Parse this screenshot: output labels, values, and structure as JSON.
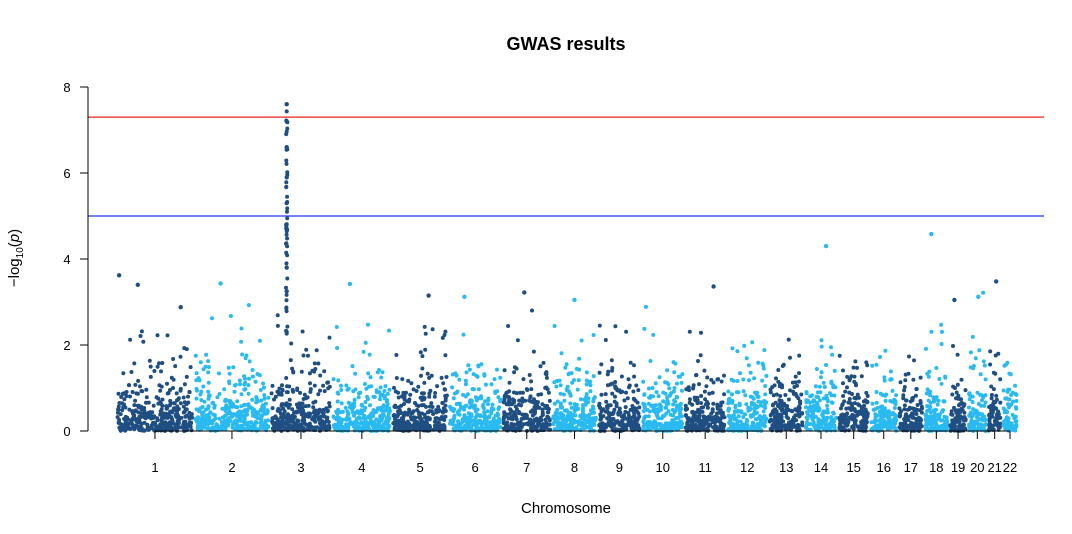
{
  "chart_data": {
    "type": "scatter",
    "title": "GWAS results",
    "xlabel": "Chromosome",
    "ylabel_parts": [
      "−log",
      "10",
      "(",
      "p",
      ")"
    ],
    "ylim": [
      0,
      8
    ],
    "yticks": [
      0,
      2,
      4,
      6,
      8
    ],
    "chromosomes": [
      "1",
      "2",
      "3",
      "4",
      "5",
      "6",
      "7",
      "8",
      "9",
      "10",
      "11",
      "12",
      "13",
      "14",
      "15",
      "16",
      "17",
      "18",
      "19",
      "20",
      "21",
      "22"
    ],
    "chromosome_relative_lengths": [
      249,
      243,
      198,
      191,
      181,
      171,
      159,
      146,
      141,
      136,
      135,
      134,
      115,
      107,
      102,
      90,
      83,
      80,
      59,
      64,
      47,
      51
    ],
    "colors": {
      "odd_chromosome": "#1f4e82",
      "even_chromosome": "#29baf1",
      "genomewide_line": "#e8231f",
      "suggestive_line": "#2536e6"
    },
    "thresholds": {
      "genomewide": 7.3,
      "suggestive": 5.0
    },
    "notable_points": [
      {
        "chr": "1",
        "pos": 0.04,
        "y": 3.62
      },
      {
        "chr": "1",
        "pos": 0.28,
        "y": 3.4
      },
      {
        "chr": "1",
        "pos": 0.83,
        "y": 2.88
      },
      {
        "chr": "2",
        "pos": 0.35,
        "y": 3.43
      },
      {
        "chr": "3",
        "pos": 0.27,
        "y": 7.6
      },
      {
        "chr": "3",
        "pos": 0.27,
        "y": 7.2
      },
      {
        "chr": "3",
        "pos": 0.27,
        "y": 6.6
      },
      {
        "chr": "3",
        "pos": 0.27,
        "y": 5.9
      },
      {
        "chr": "3",
        "pos": 0.27,
        "y": 5.3
      },
      {
        "chr": "3",
        "pos": 0.27,
        "y": 4.7
      },
      {
        "chr": "3",
        "pos": 0.27,
        "y": 3.8
      },
      {
        "chr": "3",
        "pos": 0.27,
        "y": 3.25
      },
      {
        "chr": "4",
        "pos": 0.3,
        "y": 3.42
      },
      {
        "chr": "5",
        "pos": 0.65,
        "y": 3.15
      },
      {
        "chr": "6",
        "pos": 0.3,
        "y": 3.12
      },
      {
        "chr": "7",
        "pos": 0.45,
        "y": 3.22
      },
      {
        "chr": "8",
        "pos": 0.5,
        "y": 3.05
      },
      {
        "chr": "11",
        "pos": 0.7,
        "y": 3.36
      },
      {
        "chr": "14",
        "pos": 0.65,
        "y": 4.3
      },
      {
        "chr": "18",
        "pos": 0.3,
        "y": 4.58
      },
      {
        "chr": "19",
        "pos": 0.3,
        "y": 3.05
      },
      {
        "chr": "20",
        "pos": 0.55,
        "y": 3.12
      },
      {
        "chr": "21",
        "pos": 0.6,
        "y": 3.48
      }
    ],
    "grid": false,
    "legend": "none"
  }
}
